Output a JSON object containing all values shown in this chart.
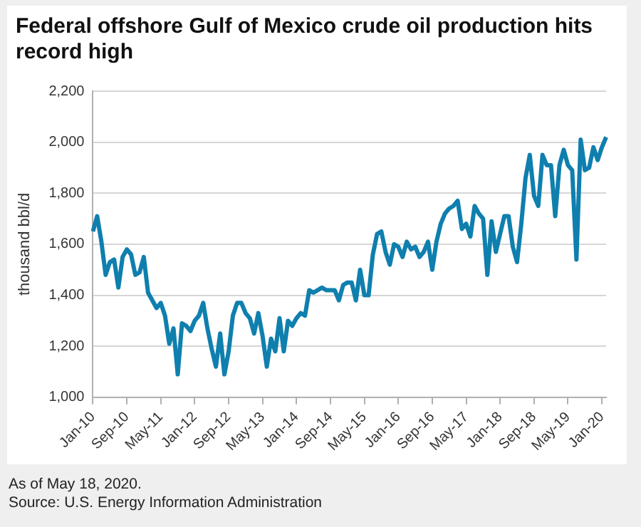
{
  "chart_data": {
    "type": "line",
    "title": "Federal offshore Gulf of Mexico crude oil production hits record high",
    "ylabel": "thousand bbl/d",
    "categories": [
      "Jan-10",
      null,
      null,
      null,
      null,
      null,
      null,
      null,
      "Sep-10",
      null,
      null,
      null,
      null,
      null,
      null,
      null,
      "May-11",
      null,
      null,
      null,
      null,
      null,
      null,
      null,
      "Jan-12",
      null,
      null,
      null,
      null,
      null,
      null,
      null,
      "Sep-12",
      null,
      null,
      null,
      null,
      null,
      null,
      null,
      "May-13",
      null,
      null,
      null,
      null,
      null,
      null,
      null,
      "Jan-14",
      null,
      null,
      null,
      null,
      null,
      null,
      null,
      "Sep-14",
      null,
      null,
      null,
      null,
      null,
      null,
      null,
      "May-15",
      null,
      null,
      null,
      null,
      null,
      null,
      null,
      "Jan-16",
      null,
      null,
      null,
      null,
      null,
      null,
      null,
      "Sep-16",
      null,
      null,
      null,
      null,
      null,
      null,
      null,
      "May-17",
      null,
      null,
      null,
      null,
      null,
      null,
      null,
      "Jan-18",
      null,
      null,
      null,
      null,
      null,
      null,
      null,
      "Sep-18",
      null,
      null,
      null,
      null,
      null,
      null,
      null,
      "May-19",
      null,
      null,
      null,
      null,
      null,
      null,
      null,
      "Jan-20",
      null
    ],
    "series": [
      {
        "color": "#0f7fae",
        "values": [
          1650,
          1710,
          1610,
          1480,
          1530,
          1540,
          1430,
          1550,
          1580,
          1560,
          1480,
          1490,
          1550,
          1410,
          1380,
          1350,
          1370,
          1320,
          1210,
          1270,
          1090,
          1290,
          1280,
          1260,
          1300,
          1320,
          1370,
          1270,
          1190,
          1120,
          1250,
          1090,
          1180,
          1320,
          1370,
          1370,
          1330,
          1310,
          1250,
          1330,
          1240,
          1120,
          1230,
          1180,
          1310,
          1180,
          1300,
          1280,
          1310,
          1330,
          1320,
          1420,
          1410,
          1420,
          1430,
          1420,
          1420,
          1420,
          1380,
          1440,
          1450,
          1450,
          1380,
          1500,
          1400,
          1400,
          1560,
          1640,
          1650,
          1570,
          1520,
          1600,
          1590,
          1550,
          1610,
          1580,
          1590,
          1550,
          1570,
          1610,
          1500,
          1610,
          1680,
          1720,
          1740,
          1750,
          1770,
          1660,
          1680,
          1630,
          1750,
          1720,
          1700,
          1480,
          1690,
          1570,
          1640,
          1710,
          1710,
          1590,
          1530,
          1680,
          1860,
          1950,
          1790,
          1750,
          1950,
          1910,
          1910,
          1710,
          1910,
          1970,
          1910,
          1890,
          1540,
          2010,
          1890,
          1900,
          1980,
          1930,
          1980,
          2020
        ]
      }
    ],
    "ylim": [
      1000,
      2200
    ],
    "yticks": [
      {
        "value": 1000,
        "label": "1,000"
      },
      {
        "value": 1200,
        "label": "1,200"
      },
      {
        "value": 1400,
        "label": "1,400"
      },
      {
        "value": 1600,
        "label": "1,600"
      },
      {
        "value": 1800,
        "label": "1,800"
      },
      {
        "value": 2000,
        "label": "2,000"
      },
      {
        "value": 2200,
        "label": "2,200"
      }
    ],
    "grid": "y",
    "legend": false,
    "marker": "none",
    "line_style": "solid",
    "annotations": [
      "As of May 18, 2020.",
      "Source: U.S. Energy Information Administration"
    ]
  }
}
